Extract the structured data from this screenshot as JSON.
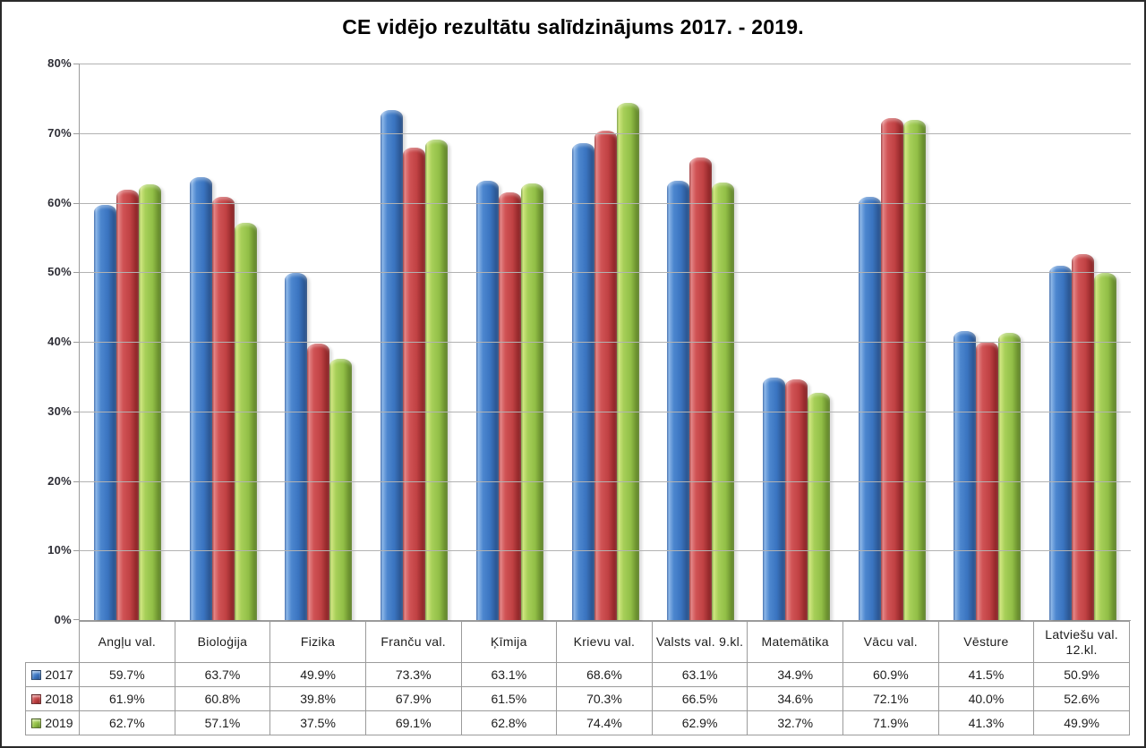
{
  "title": "CE vidējo rezultātu salīdzinājums 2017. - 2019.",
  "colors": {
    "series_2017": "#3a74c0",
    "series_2018": "#c04143",
    "series_2019": "#92bf47",
    "gridline": "#b2b2b2",
    "axis": "#9b9b9b",
    "text": "#1c1c1c"
  },
  "chart_data": {
    "type": "bar",
    "title": "CE vidējo rezultātu salīdzinājums 2017. - 2019.",
    "categories": [
      "Angļu val.",
      "Bioloģija",
      "Fizika",
      "Franču val.",
      "Ķīmija",
      "Krievu val.",
      "Valsts val. 9.kl.",
      "Matemātika",
      "Vācu val.",
      "Vēsture",
      "Latviešu val. 12.kl."
    ],
    "series": [
      {
        "name": "2017",
        "color": "#3a74c0",
        "values": [
          59.7,
          63.7,
          49.9,
          73.3,
          63.1,
          68.6,
          63.1,
          34.9,
          60.9,
          41.5,
          50.9
        ]
      },
      {
        "name": "2018",
        "color": "#c04143",
        "values": [
          61.9,
          60.8,
          39.8,
          67.9,
          61.5,
          70.3,
          66.5,
          34.6,
          72.1,
          40.0,
          52.6
        ]
      },
      {
        "name": "2019",
        "color": "#92bf47",
        "values": [
          62.7,
          57.1,
          37.5,
          69.1,
          62.8,
          74.4,
          62.9,
          32.7,
          71.9,
          41.3,
          49.9
        ]
      }
    ],
    "xlabel": "",
    "ylabel": "",
    "ylim": [
      0,
      80
    ],
    "y_ticks": [
      "0%",
      "10%",
      "20%",
      "30%",
      "40%",
      "50%",
      "60%",
      "70%",
      "80%"
    ],
    "grid": true,
    "legend_position": "table-left"
  },
  "table": {
    "rows": [
      {
        "label": "2017",
        "cells": [
          "59.7%",
          "63.7%",
          "49.9%",
          "73.3%",
          "63.1%",
          "68.6%",
          "63.1%",
          "34.9%",
          "60.9%",
          "41.5%",
          "50.9%"
        ]
      },
      {
        "label": "2018",
        "cells": [
          "61.9%",
          "60.8%",
          "39.8%",
          "67.9%",
          "61.5%",
          "70.3%",
          "66.5%",
          "34.6%",
          "72.1%",
          "40.0%",
          "52.6%"
        ]
      },
      {
        "label": "2019",
        "cells": [
          "62.7%",
          "57.1%",
          "37.5%",
          "69.1%",
          "62.8%",
          "74.4%",
          "62.9%",
          "32.7%",
          "71.9%",
          "41.3%",
          "49.9%"
        ]
      }
    ]
  }
}
